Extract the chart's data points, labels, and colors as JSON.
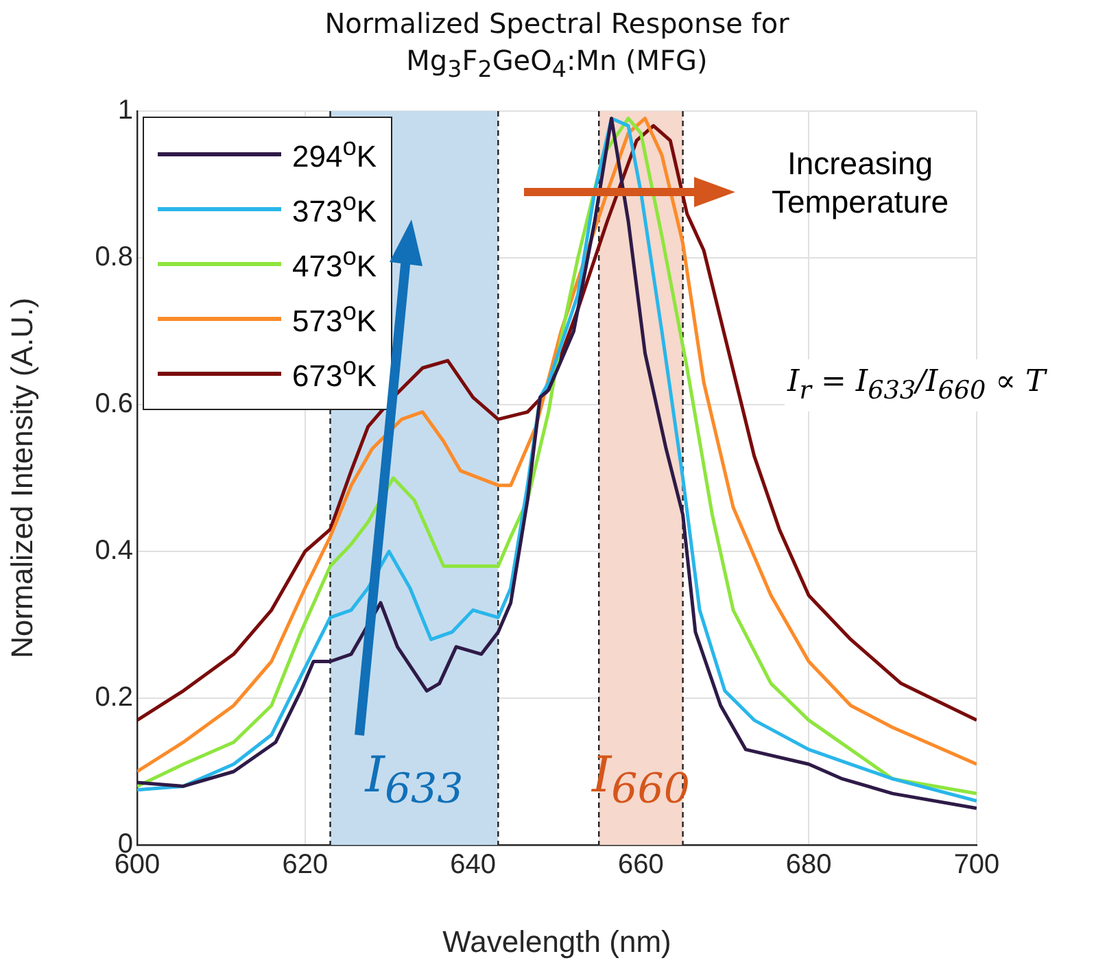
{
  "chart_data": {
    "type": "line",
    "title": "Normalized Spectral Response for Mg$_{3}$F$_{2}$GeO$_{4}$:Mn (MFG)",
    "xlabel": "Wavelength (nm)",
    "ylabel": "Normalized Intensity (A.U.)",
    "xlim": [
      600,
      700
    ],
    "xticks": [
      600,
      620,
      640,
      660,
      680,
      700
    ],
    "ylim": [
      0,
      1
    ],
    "yticks": [
      0,
      0.2,
      0.4,
      0.6,
      0.8,
      1
    ],
    "grid": true,
    "legend": "top left",
    "series": [
      {
        "name": "294$^{o}$K",
        "color": "#2e1a47",
        "x": [
          600,
          605.5,
          611.5,
          616.5,
          619.5,
          621,
          623,
          625.5,
          627,
          629,
          631,
          634.5,
          636,
          638,
          641,
          643,
          644.5,
          646.5,
          648,
          649,
          652,
          654.5,
          656.5,
          658.5,
          660.5,
          663,
          665,
          666.5,
          669.5,
          672.5,
          680,
          684,
          690,
          700
        ],
        "values": [
          0.085,
          0.08,
          0.1,
          0.14,
          0.21,
          0.25,
          0.25,
          0.26,
          0.29,
          0.33,
          0.27,
          0.21,
          0.22,
          0.27,
          0.26,
          0.29,
          0.33,
          0.47,
          0.61,
          0.62,
          0.7,
          0.85,
          0.99,
          0.85,
          0.67,
          0.54,
          0.45,
          0.29,
          0.19,
          0.13,
          0.11,
          0.09,
          0.07,
          0.05
        ]
      },
      {
        "name": "373$^{o}$K",
        "color": "#29b6ea",
        "x": [
          600,
          605.5,
          611.5,
          616,
          619.5,
          623,
          625.5,
          627.5,
          630,
          632.5,
          635,
          637.5,
          640,
          643,
          644.5,
          646.5,
          648,
          649,
          652.5,
          654.5,
          656.5,
          658.5,
          660,
          662.5,
          665,
          667,
          670,
          673.5,
          680,
          685,
          690,
          700
        ],
        "values": [
          0.075,
          0.08,
          0.11,
          0.15,
          0.23,
          0.31,
          0.32,
          0.35,
          0.4,
          0.35,
          0.28,
          0.29,
          0.32,
          0.31,
          0.35,
          0.49,
          0.61,
          0.63,
          0.75,
          0.89,
          0.99,
          0.98,
          0.89,
          0.7,
          0.5,
          0.32,
          0.21,
          0.17,
          0.13,
          0.11,
          0.09,
          0.06
        ]
      },
      {
        "name": "473$^{o}$K",
        "color": "#8ee53f",
        "x": [
          600,
          605.5,
          611.5,
          616,
          619.5,
          623,
          625.5,
          627.5,
          630.5,
          633,
          636.5,
          638.5,
          643,
          644.5,
          646.5,
          649,
          650.5,
          652.5,
          655.5,
          658.5,
          660,
          662.5,
          665.5,
          668.5,
          671,
          675.5,
          680,
          685,
          690,
          700
        ],
        "values": [
          0.08,
          0.11,
          0.14,
          0.19,
          0.29,
          0.38,
          0.41,
          0.44,
          0.5,
          0.47,
          0.38,
          0.38,
          0.38,
          0.42,
          0.47,
          0.59,
          0.69,
          0.8,
          0.94,
          0.99,
          0.97,
          0.83,
          0.65,
          0.45,
          0.32,
          0.22,
          0.17,
          0.13,
          0.09,
          0.07
        ]
      },
      {
        "name": "573$^{o}$K",
        "color": "#fb8b2a",
        "x": [
          600,
          605.5,
          611.5,
          616,
          620,
          623,
          625.5,
          628,
          631.5,
          634,
          636.5,
          638.5,
          643,
          644.5,
          647.5,
          650.5,
          652.5,
          656,
          658.5,
          660.5,
          662.5,
          665,
          667.5,
          671,
          675.5,
          680,
          685,
          690,
          700
        ],
        "values": [
          0.1,
          0.14,
          0.19,
          0.25,
          0.35,
          0.42,
          0.49,
          0.54,
          0.58,
          0.59,
          0.55,
          0.51,
          0.49,
          0.49,
          0.57,
          0.7,
          0.77,
          0.89,
          0.97,
          0.99,
          0.94,
          0.82,
          0.63,
          0.46,
          0.34,
          0.25,
          0.19,
          0.16,
          0.11
        ]
      },
      {
        "name": "673$^{o}$K",
        "color": "#7a0b0b",
        "x": [
          600,
          605.5,
          611.5,
          616,
          620,
          623,
          625.5,
          627.5,
          630.5,
          634,
          637,
          640,
          643,
          646.5,
          649,
          652.5,
          656,
          659.5,
          661.5,
          663.5,
          665.5,
          667.5,
          670.5,
          673.5,
          676.5,
          680,
          685,
          691,
          700
        ],
        "values": [
          0.17,
          0.21,
          0.26,
          0.32,
          0.4,
          0.43,
          0.51,
          0.57,
          0.61,
          0.65,
          0.66,
          0.61,
          0.58,
          0.59,
          0.62,
          0.73,
          0.85,
          0.96,
          0.98,
          0.96,
          0.86,
          0.81,
          0.67,
          0.53,
          0.43,
          0.34,
          0.28,
          0.22,
          0.17
        ]
      }
    ],
    "bands": [
      {
        "axis": "x",
        "from": 623,
        "to": 643,
        "label": "I$_{633}$",
        "color": "#c5dcee"
      },
      {
        "axis": "x",
        "from": 655,
        "to": 665,
        "label": "I$_{660}$",
        "color": "#f6d8cc"
      }
    ],
    "annotations": [
      "Increasing Temperature",
      "I$_{r}$ = I$_{633}$/I$_{660}$ ∝ T"
    ]
  }
}
